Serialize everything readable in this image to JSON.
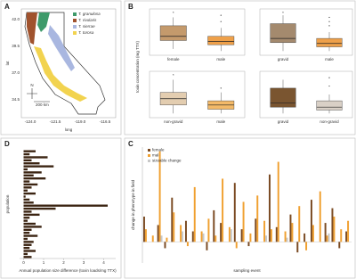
{
  "map": {
    "panel": "A",
    "legend": [
      "T. granulosa",
      "T. rivularis",
      "T. sierrae",
      "T. torosa"
    ],
    "legend_colors": [
      "#3e9a6a",
      "#a0522d",
      "#a9b7e0",
      "#f2d34f"
    ],
    "x_label": "long",
    "y_label": "lat",
    "xticks": [
      "-124.0",
      "-121.5",
      "-119.0",
      "-116.5"
    ],
    "yticks": [
      "42.0",
      "39.5",
      "37.0",
      "34.5"
    ],
    "scale": "200 km",
    "compass": "N"
  },
  "chart_data": [
    {
      "type": "box",
      "panel": "B",
      "y_label": "toxin concentration (mg TTX)",
      "categories": [
        "female",
        "male"
      ],
      "colors": [
        "#c49a6c",
        "#eea04a"
      ],
      "boxes": [
        [
          0.15,
          0.35,
          0.45,
          0.7,
          0.9
        ],
        [
          0.1,
          0.25,
          0.33,
          0.45,
          0.65
        ]
      ],
      "outliers": [
        [],
        [
          0.8,
          0.95
        ]
      ],
      "annotation": "*",
      "ylim": [
        0,
        1.1
      ]
    },
    {
      "type": "box",
      "categories": [
        "gravid",
        "male"
      ],
      "colors": [
        "#a48a6e",
        "#eea04a"
      ],
      "boxes": [
        [
          0.1,
          0.3,
          0.4,
          0.75,
          0.95
        ],
        [
          0.1,
          0.2,
          0.28,
          0.4,
          0.55
        ]
      ],
      "outliers": [
        [],
        [
          0.7,
          0.8,
          0.9
        ]
      ],
      "annotation": "*",
      "ylim": [
        0,
        1.1
      ]
    },
    {
      "type": "box",
      "categories": [
        "non-gravid",
        "male"
      ],
      "colors": [
        "#e3cdb0",
        "#f3b968"
      ],
      "boxes": [
        [
          0.1,
          0.3,
          0.45,
          0.6,
          0.9
        ],
        [
          0.1,
          0.2,
          0.3,
          0.4,
          0.6
        ]
      ],
      "outliers": [
        [],
        [
          0.7
        ]
      ],
      "annotation": "*",
      "ylim": [
        0,
        1.1
      ]
    },
    {
      "type": "box",
      "categories": [
        "gravid",
        "non-gravid"
      ],
      "colors": [
        "#7a5530",
        "#d9d0c6"
      ],
      "boxes": [
        [
          0.1,
          0.25,
          0.35,
          0.7,
          0.9
        ],
        [
          0.1,
          0.18,
          0.25,
          0.4,
          0.55
        ]
      ],
      "outliers": [
        [],
        [
          0.75,
          0.95
        ]
      ],
      "ylim": [
        0,
        1.1
      ]
    },
    {
      "type": "bar",
      "panel": "C",
      "y_label": "change in phenotype in field",
      "x_label": "sampling event",
      "ylim": [
        -1,
        4.5
      ],
      "series": [
        {
          "name": "female",
          "color": "#7a4a22",
          "values": [
            1.2,
            null,
            0.8,
            -0.3,
            2.1,
            null,
            1.0,
            0.5,
            null,
            -0.4,
            1.5,
            0.9,
            null,
            2.8,
            0.6,
            -0.2,
            1.1,
            null,
            3.2,
            0.7,
            null,
            1.3,
            -0.5,
            0.4,
            2.0,
            null,
            0.9,
            1.6,
            -0.3,
            0.5
          ]
        },
        {
          "name": "male",
          "color": "#f0a030",
          "values": [
            0.6,
            0.3,
            4.3,
            0.2,
            1.4,
            0.8,
            -0.2,
            2.6,
            0.5,
            1.1,
            0.3,
            3.0,
            0.7,
            -0.3,
            1.9,
            0.4,
            2.2,
            1.0,
            0.6,
            3.8,
            0.5,
            0.9,
            1.7,
            -0.4,
            0.8,
            2.4,
            0.3,
            1.2,
            0.6,
            1.0
          ]
        },
        {
          "name": "sizeable change",
          "color": "#c8c8c8",
          "values": [
            null,
            null,
            0.3,
            null,
            null,
            0.5,
            null,
            null,
            0.4,
            null,
            null,
            null,
            0.6,
            null,
            null,
            null,
            null,
            0.3,
            null,
            null,
            0.2,
            null,
            null,
            null,
            null,
            null,
            0.4,
            null,
            null,
            null
          ]
        }
      ]
    },
    {
      "type": "barh",
      "panel": "D",
      "y_label": "population",
      "x_label": "Annual population size difference (toxin loads/mg TTX)",
      "color": "#3b2412",
      "xlim": [
        -0.2,
        4.6
      ],
      "xticks": [
        0,
        1,
        2,
        3,
        4
      ],
      "values": [
        0.6,
        0.3,
        1.2,
        0.4,
        0.8,
        1.5,
        0.2,
        0.9,
        0.5,
        1.1,
        0.3,
        0.7,
        0.4,
        0.2,
        0.6,
        0.1,
        0.3,
        0.5,
        4.2,
        1.6,
        0.4,
        0.8,
        0.3,
        0.2,
        0.6,
        0.9,
        0.4,
        0.3,
        0.7,
        0.2,
        0.5,
        0.4,
        0.3,
        0.6,
        0.2,
        0.4
      ]
    }
  ]
}
